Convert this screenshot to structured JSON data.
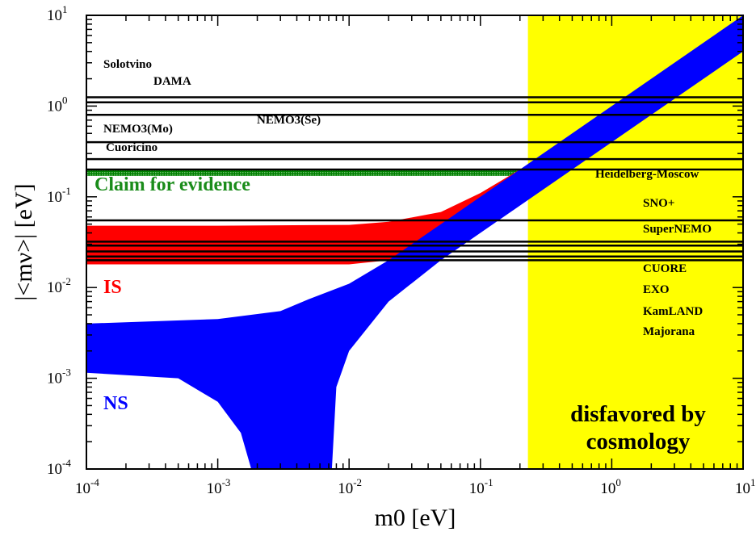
{
  "chart_data": {
    "type": "area",
    "xlabel": "m0 [eV]",
    "ylabel": "|<mν>| [eV]",
    "xscale": "log",
    "yscale": "log",
    "xlim": [
      0.0001,
      10
    ],
    "ylim": [
      0.0001,
      10
    ],
    "x_ticks": [
      {
        "base": "10",
        "exp": "-4",
        "value": 0.0001
      },
      {
        "base": "10",
        "exp": "-3",
        "value": 0.001
      },
      {
        "base": "10",
        "exp": "-2",
        "value": 0.01
      },
      {
        "base": "10",
        "exp": "-1",
        "value": 0.1
      },
      {
        "base": "10",
        "exp": "0",
        "value": 1
      },
      {
        "base": "10",
        "exp": "1",
        "value": 10
      }
    ],
    "y_ticks": [
      {
        "base": "10",
        "exp": "-4",
        "value": 0.0001
      },
      {
        "base": "10",
        "exp": "-3",
        "value": 0.001
      },
      {
        "base": "10",
        "exp": "-2",
        "value": 0.01
      },
      {
        "base": "10",
        "exp": "-1",
        "value": 0.1
      },
      {
        "base": "10",
        "exp": "0",
        "value": 1
      },
      {
        "base": "10",
        "exp": "1",
        "value": 10
      }
    ],
    "grid": false,
    "disfavored_region": {
      "label_line1": "disfavored by",
      "label_line2": "cosmology",
      "x_min": 0.23,
      "x_max": 10,
      "color": "#ffff00"
    },
    "evidence_claim": {
      "label": "Claim for evidence",
      "y_min": 0.17,
      "y_max": 0.2,
      "color": "#008000"
    },
    "bands": [
      {
        "label": "IS",
        "color": "#ff0000",
        "upper": [
          [
            0.0001,
            0.048
          ],
          [
            0.001,
            0.048
          ],
          [
            0.01,
            0.049
          ],
          [
            0.02,
            0.053
          ],
          [
            0.05,
            0.068
          ],
          [
            0.1,
            0.11
          ],
          [
            0.2,
            0.2
          ]
        ],
        "lower": [
          [
            0.0001,
            0.018
          ],
          [
            0.001,
            0.018
          ],
          [
            0.01,
            0.018
          ],
          [
            0.02,
            0.02
          ],
          [
            0.03,
            0.023
          ],
          [
            0.04,
            0.03
          ]
        ]
      },
      {
        "label": "NS",
        "color": "#0000ff",
        "upper": [
          [
            0.0001,
            0.004
          ],
          [
            0.001,
            0.0045
          ],
          [
            0.003,
            0.0055
          ],
          [
            0.005,
            0.0075
          ],
          [
            0.01,
            0.011
          ],
          [
            0.02,
            0.02
          ],
          [
            0.05,
            0.05
          ],
          [
            0.1,
            0.1
          ],
          [
            1,
            1
          ],
          [
            10,
            10
          ]
        ],
        "lower": [
          [
            0.0001,
            0.00115
          ],
          [
            0.0005,
            0.001
          ],
          [
            0.001,
            0.00055
          ],
          [
            0.0015,
            0.00025
          ],
          [
            0.0018,
            0.0001
          ],
          [
            0.0074,
            0.0001
          ],
          [
            0.008,
            0.0008
          ],
          [
            0.01,
            0.002
          ],
          [
            0.02,
            0.007
          ],
          [
            0.05,
            0.02
          ],
          [
            0.1,
            0.04
          ],
          [
            1,
            0.4
          ],
          [
            10,
            4
          ]
        ]
      }
    ],
    "limits": [
      {
        "label": "Solotvino",
        "y": 1.25
      },
      {
        "label": "DAMA",
        "y": 1.1
      },
      {
        "label": "NEMO3(Se)",
        "y": 0.8
      },
      {
        "label": "NEMO3(Mo)",
        "y": 0.4
      },
      {
        "label": "Cuoricino",
        "y": 0.26
      },
      {
        "label": "Heidelberg-Moscow",
        "y": 0.2
      },
      {
        "label": "SNO+",
        "y": 0.055
      },
      {
        "label": "SuperNEMO",
        "y": 0.032
      },
      {
        "label": "CUORE",
        "y": 0.029
      },
      {
        "label": "EXO",
        "y": 0.025
      },
      {
        "label": "KamLAND",
        "y": 0.022
      },
      {
        "label": "Majorana",
        "y": 0.02
      }
    ]
  }
}
